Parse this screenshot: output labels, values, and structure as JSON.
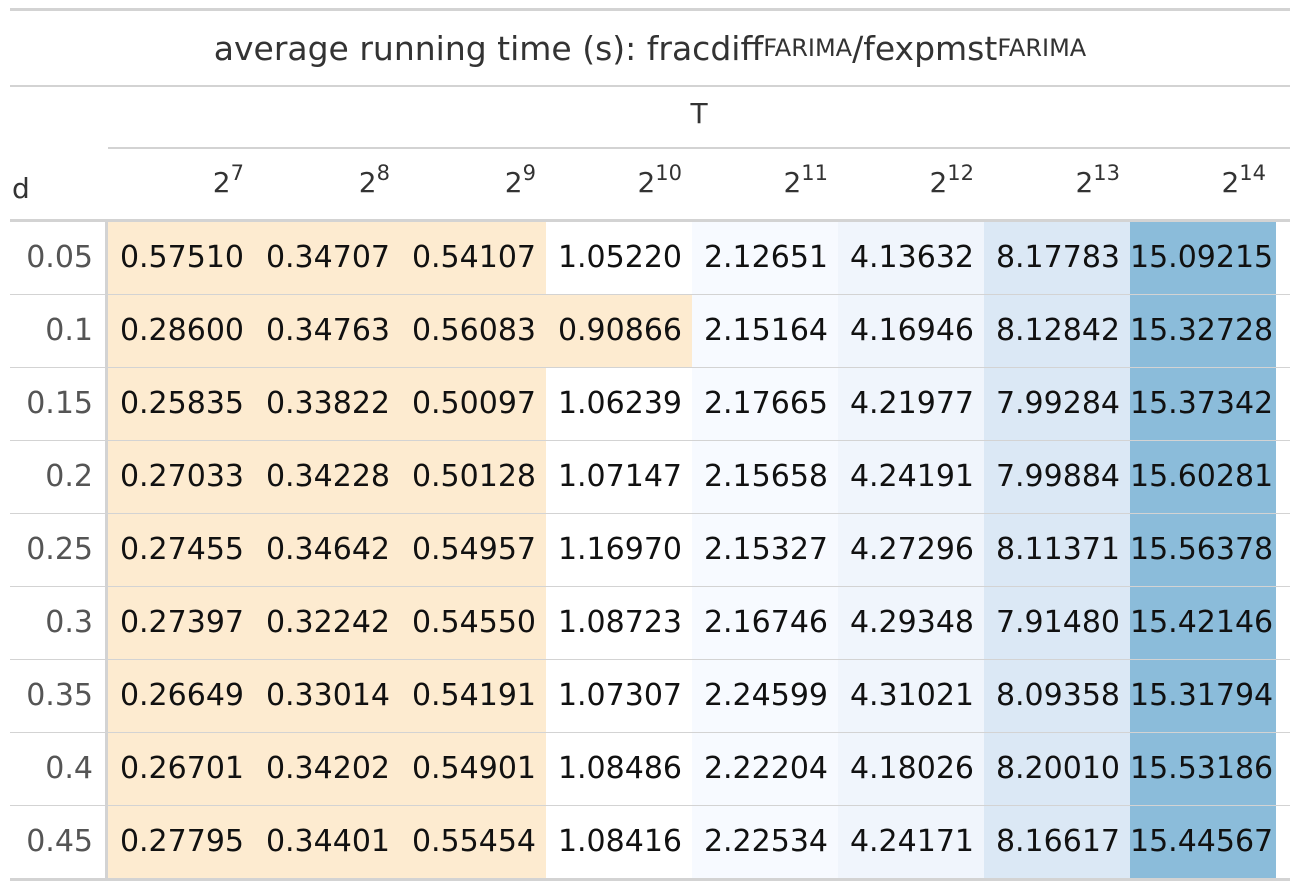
{
  "title": {
    "prefix": "average running time (s): fracdiff",
    "sub1": "FARIMA",
    "mid": "/fexpmst",
    "sub2": "FARIMA"
  },
  "spanner": "T",
  "stub_header": "d",
  "columns": [
    {
      "base": "2",
      "exp": "7"
    },
    {
      "base": "2",
      "exp": "8"
    },
    {
      "base": "2",
      "exp": "9"
    },
    {
      "base": "2",
      "exp": "10"
    },
    {
      "base": "2",
      "exp": "11"
    },
    {
      "base": "2",
      "exp": "12"
    },
    {
      "base": "2",
      "exp": "13"
    },
    {
      "base": "2",
      "exp": "14"
    }
  ],
  "rows": [
    {
      "d": "0.05",
      "values": [
        "0.57510",
        "0.34707",
        "0.54107",
        "1.05220",
        "2.12651",
        "4.13632",
        "8.17783",
        "15.09215"
      ]
    },
    {
      "d": "0.1",
      "values": [
        "0.28600",
        "0.34763",
        "0.56083",
        "0.90866",
        "2.15164",
        "4.16946",
        "8.12842",
        "15.32728"
      ]
    },
    {
      "d": "0.15",
      "values": [
        "0.25835",
        "0.33822",
        "0.50097",
        "1.06239",
        "2.17665",
        "4.21977",
        "7.99284",
        "15.37342"
      ]
    },
    {
      "d": "0.2",
      "values": [
        "0.27033",
        "0.34228",
        "0.50128",
        "1.07147",
        "2.15658",
        "4.24191",
        "7.99884",
        "15.60281"
      ]
    },
    {
      "d": "0.25",
      "values": [
        "0.27455",
        "0.34642",
        "0.54957",
        "1.16970",
        "2.15327",
        "4.27296",
        "8.11371",
        "15.56378"
      ]
    },
    {
      "d": "0.3",
      "values": [
        "0.27397",
        "0.32242",
        "0.54550",
        "1.08723",
        "2.16746",
        "4.29348",
        "7.91480",
        "15.42146"
      ]
    },
    {
      "d": "0.35",
      "values": [
        "0.26649",
        "0.33014",
        "0.54191",
        "1.07307",
        "2.24599",
        "4.31021",
        "8.09358",
        "15.31794"
      ]
    },
    {
      "d": "0.4",
      "values": [
        "0.26701",
        "0.34202",
        "0.54901",
        "1.08486",
        "2.22204",
        "4.18026",
        "8.20010",
        "15.53186"
      ]
    },
    {
      "d": "0.45",
      "values": [
        "0.27795",
        "0.34401",
        "0.55454",
        "1.08416",
        "2.22534",
        "4.24171",
        "8.16617",
        "15.44567"
      ]
    }
  ],
  "colors": {
    "low": "#fdebd0",
    "white": "#ffffff",
    "light": "#f7faff",
    "lightblue": "#f0f5fc",
    "midblue": "#dbe8f5",
    "high": "#8bbcda",
    "border": "#d3d3d3"
  }
}
